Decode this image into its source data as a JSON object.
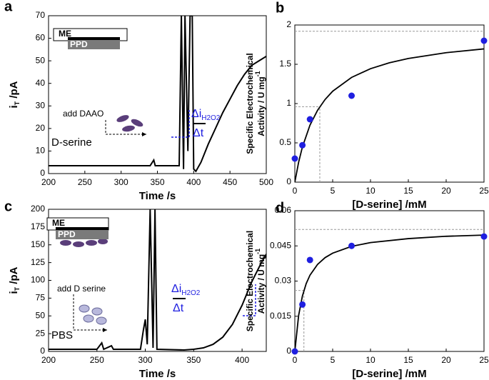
{
  "chart_data": [
    {
      "type": "line",
      "panel_label": "a",
      "xlabel": "Time /s",
      "ylabel": [
        [
          "i",
          "T",
          " /pA"
        ]
      ],
      "ylabel_shift": "sub",
      "xlim": [
        200,
        500
      ],
      "xticks": [
        200,
        250,
        300,
        350,
        400,
        450,
        500
      ],
      "ylim": [
        0,
        70
      ],
      "yticks": [
        0,
        10,
        20,
        30,
        40,
        50,
        60,
        70
      ],
      "color": "#000000",
      "x": [
        200,
        250,
        300,
        340,
        345,
        347,
        380,
        383,
        386,
        388,
        392,
        395,
        398,
        400,
        403,
        410,
        420,
        430,
        440,
        450,
        460,
        470,
        480,
        490,
        500
      ],
      "values": [
        3.5,
        3.5,
        3.5,
        3.5,
        6,
        3.5,
        3.5,
        70,
        2,
        70,
        10,
        70,
        70,
        2,
        1,
        5,
        13,
        20,
        27,
        33,
        39,
        44,
        48,
        50,
        52
      ],
      "annotations": {
        "me": "ME",
        "ppd": "PPD",
        "add": "add DAAO",
        "sample": "D-serine",
        "delta_i": "Δi",
        "delta_i_sub": "H2O2",
        "delta_t": "Δt"
      }
    },
    {
      "type": "scatter",
      "panel_label": "b",
      "xlabel": "[D-serine] /mM",
      "ylabel": [
        [
          "Specific Electrochemical"
        ],
        [
          "Activity / U mg",
          "-1"
        ]
      ],
      "ylabel_shift": "super",
      "xlim": [
        0,
        25
      ],
      "xticks": [
        0,
        5,
        10,
        15,
        20,
        25
      ],
      "ylim": [
        0,
        2
      ],
      "yticks": [
        0,
        0.5,
        1,
        1.5,
        2
      ],
      "points": {
        "color": "#1f1fe0",
        "x": [
          0,
          1,
          2,
          7.5,
          25
        ],
        "values": [
          0.3,
          0.47,
          0.8,
          1.1,
          1.8
        ]
      },
      "fit": {
        "color": "#000000",
        "x": [
          0,
          0.5,
          1,
          2,
          3,
          4,
          5,
          7.5,
          10,
          12.5,
          15,
          20,
          25
        ],
        "values": [
          0,
          0.253,
          0.447,
          0.725,
          0.914,
          1.052,
          1.157,
          1.333,
          1.444,
          1.519,
          1.574,
          1.648,
          1.696
        ]
      },
      "vmax": 1.92,
      "km": 3.3,
      "half_vmax": 0.96
    },
    {
      "type": "line",
      "panel_label": "c",
      "xlabel": "Time /s",
      "ylabel": [
        [
          "i",
          "T",
          " /pA"
        ]
      ],
      "ylabel_shift": "sub",
      "xlim": [
        200,
        425
      ],
      "xticks": [
        200,
        250,
        300,
        350,
        400
      ],
      "ylim": [
        0,
        200
      ],
      "yticks": [
        0,
        25,
        50,
        75,
        100,
        125,
        150,
        175,
        200
      ],
      "color": "#000000",
      "x": [
        200,
        250,
        255,
        257,
        265,
        267,
        295,
        298,
        300,
        302,
        305,
        308,
        310,
        312,
        340,
        350,
        360,
        370,
        380,
        390,
        400,
        410,
        420,
        425
      ],
      "values": [
        3,
        3,
        12,
        3,
        8,
        3,
        3,
        30,
        45,
        10,
        200,
        5,
        200,
        3,
        2,
        3,
        5,
        10,
        20,
        38,
        65,
        98,
        125,
        137
      ],
      "annotations": {
        "me": "ME",
        "ppd": "PPD",
        "add": "add D serine",
        "sample": "PBS",
        "delta_i": "Δi",
        "delta_i_sub": "H2O2",
        "delta_t": "Δt"
      }
    },
    {
      "type": "scatter",
      "panel_label": "d",
      "xlabel": "[D-serine] /mM",
      "ylabel": [
        [
          "Specific Electrochemical"
        ],
        [
          "Activity / U mg",
          "-1"
        ]
      ],
      "ylabel_shift": "super",
      "xlim": [
        0,
        25
      ],
      "xticks": [
        0,
        5,
        10,
        15,
        20,
        25
      ],
      "ylim": [
        0,
        0.06
      ],
      "yticks": [
        0,
        0.015,
        0.03,
        0.045,
        0.06
      ],
      "points": {
        "color": "#1f1fe0",
        "x": [
          0,
          1,
          2,
          7.5,
          25
        ],
        "values": [
          0,
          0.02,
          0.039,
          0.045,
          0.049
        ]
      },
      "fit": {
        "color": "#000000",
        "x": [
          0,
          0.5,
          1,
          1.5,
          2,
          3,
          4,
          5,
          7.5,
          10,
          15,
          20,
          25
        ],
        "values": [
          0,
          0.0153,
          0.0236,
          0.0289,
          0.0325,
          0.0371,
          0.04,
          0.0419,
          0.0448,
          0.0464,
          0.0481,
          0.0491,
          0.0496
        ]
      },
      "vmax": 0.052,
      "km": 1.2,
      "half_vmax": 0.026
    }
  ]
}
